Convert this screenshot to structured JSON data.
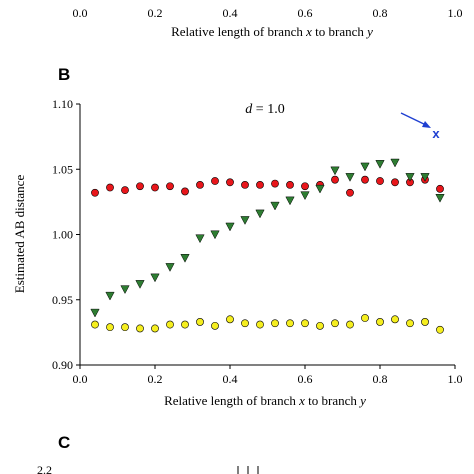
{
  "panel_a_remnant": {
    "tick_labels": [
      "0.0",
      "0.2",
      "0.4",
      "0.6",
      "0.8",
      "1.0"
    ],
    "xlabel_parts": [
      "Relative length of branch ",
      "x",
      " to branch ",
      "y"
    ]
  },
  "panel_b": {
    "label": "B",
    "annotation_parts": [
      "d",
      " = 1.0"
    ],
    "marker_label": "x",
    "xlabel_parts": [
      "Relative length of branch ",
      "x",
      " to branch ",
      "y"
    ],
    "ylabel": "Estimated AB distance",
    "x_tick_labels": [
      "0.0",
      "0.2",
      "0.4",
      "0.6",
      "0.8",
      "1.0"
    ],
    "y_tick_labels": [
      "0.90",
      "0.95",
      "1.00",
      "1.05",
      "1.10"
    ]
  },
  "panel_c": {
    "label": "C",
    "top_tick_label": "2.2"
  },
  "colors": {
    "red": "#e8161b",
    "green": "#2e7d32",
    "yellow": "#f5ee1f",
    "arrow": "#1f3fd1"
  },
  "chart_data": {
    "type": "scatter",
    "xlim": [
      0.0,
      1.0
    ],
    "ylim": [
      0.9,
      1.1
    ],
    "x_ticks": [
      0.0,
      0.2,
      0.4,
      0.6,
      0.8,
      1.0
    ],
    "y_ticks": [
      0.9,
      0.95,
      1.0,
      1.05,
      1.1
    ],
    "grid": false,
    "series": [
      {
        "marker": "circle",
        "color": "#e8161b",
        "x": [
          0.04,
          0.08,
          0.12,
          0.16,
          0.2,
          0.24,
          0.28,
          0.32,
          0.36,
          0.4,
          0.44,
          0.48,
          0.52,
          0.56,
          0.6,
          0.64,
          0.68,
          0.72,
          0.76,
          0.8,
          0.84,
          0.88,
          0.92,
          0.96
        ],
        "y": [
          1.032,
          1.036,
          1.034,
          1.037,
          1.036,
          1.037,
          1.033,
          1.038,
          1.041,
          1.04,
          1.038,
          1.038,
          1.039,
          1.038,
          1.037,
          1.038,
          1.042,
          1.032,
          1.042,
          1.041,
          1.04,
          1.04,
          1.042,
          1.035
        ]
      },
      {
        "marker": "triangle-down",
        "color": "#2e7d32",
        "x": [
          0.04,
          0.08,
          0.12,
          0.16,
          0.2,
          0.24,
          0.28,
          0.32,
          0.36,
          0.4,
          0.44,
          0.48,
          0.52,
          0.56,
          0.6,
          0.64,
          0.68,
          0.72,
          0.76,
          0.8,
          0.84,
          0.88,
          0.92,
          0.96
        ],
        "y": [
          0.94,
          0.953,
          0.958,
          0.962,
          0.967,
          0.975,
          0.982,
          0.997,
          1.0,
          1.006,
          1.011,
          1.016,
          1.022,
          1.026,
          1.03,
          1.035,
          1.049,
          1.044,
          1.052,
          1.054,
          1.055,
          1.044,
          1.044,
          1.028
        ]
      },
      {
        "marker": "circle",
        "color": "#f5ee1f",
        "x": [
          0.04,
          0.08,
          0.12,
          0.16,
          0.2,
          0.24,
          0.28,
          0.32,
          0.36,
          0.4,
          0.44,
          0.48,
          0.52,
          0.56,
          0.6,
          0.64,
          0.68,
          0.72,
          0.76,
          0.8,
          0.84,
          0.88,
          0.92,
          0.96
        ],
        "y": [
          0.931,
          0.929,
          0.929,
          0.928,
          0.928,
          0.931,
          0.931,
          0.933,
          0.93,
          0.935,
          0.932,
          0.931,
          0.932,
          0.932,
          0.932,
          0.93,
          0.932,
          0.931,
          0.936,
          0.933,
          0.935,
          0.932,
          0.933,
          0.927
        ]
      }
    ]
  }
}
